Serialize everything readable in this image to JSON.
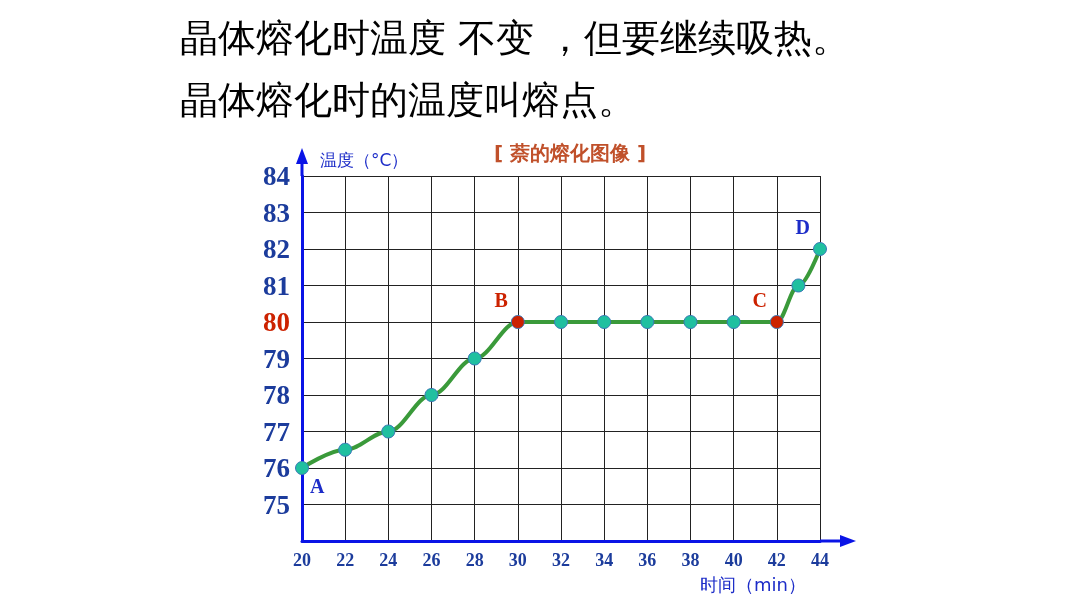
{
  "chart_data": {
    "type": "line",
    "title": "[ 萘的熔化图像 ]",
    "xlabel": "时间（min）",
    "ylabel": "温度（°C）",
    "x": [
      20,
      22,
      24,
      26,
      28,
      30,
      32,
      34,
      36,
      38,
      40,
      42,
      43,
      44
    ],
    "series": [
      {
        "color": "#3a9a3a",
        "colors": [
          "#20c0a0",
          "#20c0a0",
          "#20c0a0",
          "#20c0a0",
          "#20c0a0",
          "#cc2200",
          "#20c0a0",
          "#20c0a0",
          "#20c0a0",
          "#20c0a0",
          "#20c0a0",
          "#cc2200",
          "#20c0a0",
          "#20c0a0"
        ],
        "values": [
          76,
          76.5,
          77,
          78,
          79,
          80,
          80,
          80,
          80,
          80,
          80,
          80,
          81,
          82
        ]
      }
    ],
    "xlim": [
      20,
      44
    ],
    "xticks": [
      20,
      22,
      24,
      26,
      28,
      30,
      32,
      34,
      36,
      38,
      40,
      42,
      44
    ],
    "ylim": [
      74,
      84
    ],
    "yticks": [
      75,
      76,
      77,
      78,
      79,
      80,
      81,
      82,
      83,
      84
    ],
    "grid": true,
    "legend": false,
    "marker": "circle",
    "line_style": "solid",
    "annotations": [
      "晶体熔化时温度 不变 ，但要继续吸热。",
      "晶体熔化时的温度叫熔点。",
      {
        "text": "A",
        "x": 20,
        "y": 76
      },
      {
        "text": "B",
        "x": 30,
        "y": 80
      },
      {
        "text": "C",
        "x": 42,
        "y": 80
      },
      {
        "text": "D",
        "x": 44,
        "y": 82
      }
    ]
  }
}
